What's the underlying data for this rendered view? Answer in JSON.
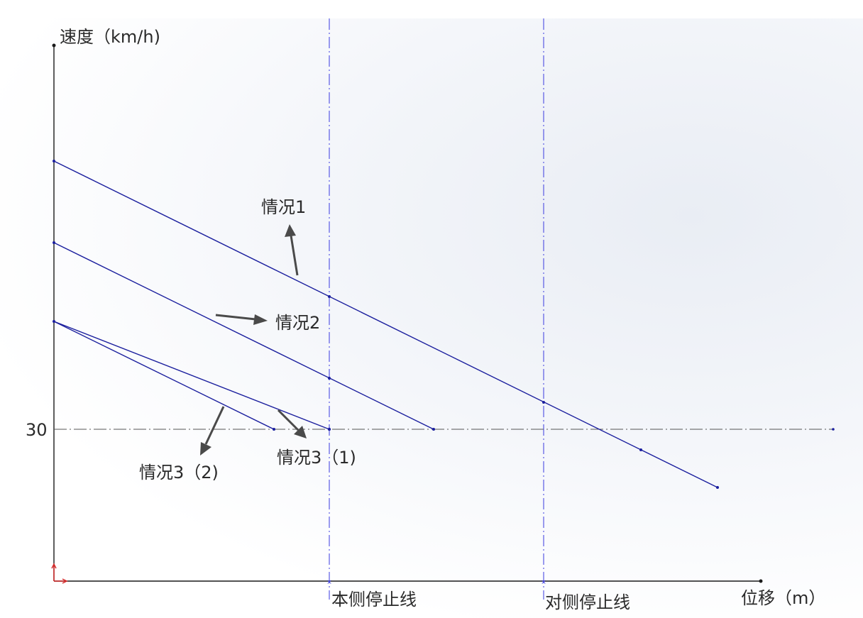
{
  "axes": {
    "y_label": "速度（km/h)",
    "x_label": "位移（m）",
    "y_tick_label": "30"
  },
  "stop_lines": {
    "near": "本侧停止线",
    "far": "对侧停止线"
  },
  "cases": {
    "case1": "情况1",
    "case2": "情况2",
    "case3_1": "情况3（1)",
    "case3_2": "情况3（2)"
  },
  "colors": {
    "lines": "#1b1f9e",
    "axis": "#1a1a1a",
    "stop_line": "#3a3ae0",
    "reference_line": "#555555",
    "arrow": "#4a4a4a",
    "origin_marker": "#d42a2a"
  }
}
